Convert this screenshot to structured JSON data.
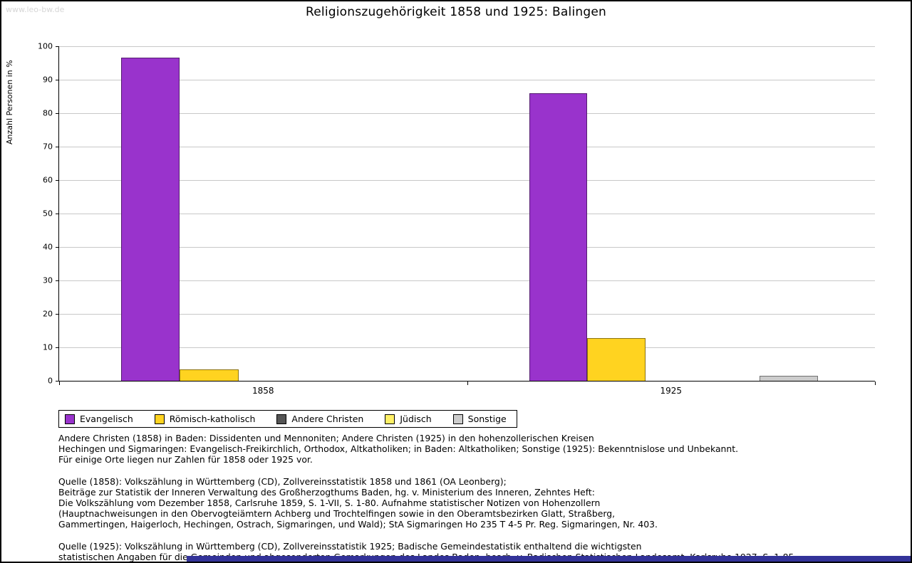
{
  "watermark": "www.leo-bw.de",
  "footer_bar_color": "#333399",
  "chart_data": {
    "type": "bar",
    "title": "Religionszugehörigkeit 1858 und 1925: Balingen",
    "ylabel": "Anzahl Personen in %",
    "ylim": [
      0,
      100
    ],
    "ytick_step": 10,
    "grid": true,
    "legend_position": "bottom-left",
    "categories": [
      "1858",
      "1925"
    ],
    "series": [
      {
        "name": "Evangelisch",
        "color": "#9933cc",
        "values": [
          96.6,
          86.0
        ]
      },
      {
        "name": "Römisch-katholisch",
        "color": "#ffd320",
        "values": [
          3.4,
          12.8
        ]
      },
      {
        "name": "Andere Christen",
        "color": "#555555",
        "values": [
          0,
          0
        ]
      },
      {
        "name": "Jüdisch",
        "color": "#fff066",
        "values": [
          0,
          0
        ]
      },
      {
        "name": "Sonstige",
        "color": "#cccccc",
        "values": [
          0,
          1.4
        ]
      }
    ]
  },
  "notes": {
    "definitions": "Andere Christen (1858) in Baden: Dissidenten und Mennoniten; Andere Christen (1925) in den hohenzollerischen Kreisen\nHechingen und Sigmaringen: Evangelisch-Freikirchlich, Orthodox, Altkatholiken; in Baden: Altkatholiken; Sonstige (1925): Bekenntnislose und Unbekannt.\nFür einige Orte liegen nur Zahlen für 1858 oder 1925 vor.",
    "quelle_1858": "Quelle (1858): Volkszählung in Württemberg (CD), Zollvereinsstatistik 1858 und 1861 (OA Leonberg);\nBeiträge zur Statistik der Inneren Verwaltung des Großherzogthums Baden, hg. v. Ministerium des Inneren, Zehntes Heft:\nDie Volkszählung vom Dezember 1858, Carlsruhe 1859, S. 1-VII, S. 1-80. Aufnahme statistischer Notizen von Hohenzollern\n(Hauptnachweisungen in den Obervogteiämtern Achberg und Trochtelfingen sowie in den Oberamtsbezirken Glatt, Straßberg,\nGammertingen, Haigerloch, Hechingen, Ostrach, Sigmaringen, und Wald); StA Sigmaringen Ho 235 T 4-5 Pr. Reg. Sigmaringen, Nr. 403.",
    "quelle_1925": "Quelle (1925): Volkszählung in Württemberg (CD), Zollvereinsstatistik 1925; Badische Gemeindestatistik enthaltend die wichtigsten\nstatistischen Angaben für die Gemeinden und abgesonderten Gemarkungen des Landes Baden, bearb. v. Badischen Statistischen Landesamt, Karlsruhe 1927, S. 1-85."
  }
}
